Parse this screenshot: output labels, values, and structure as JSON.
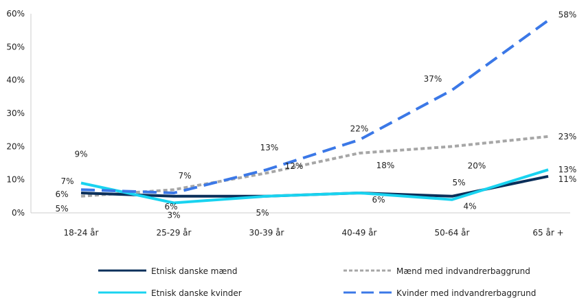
{
  "chart_data": {
    "type": "line",
    "categories": [
      "18-24 år",
      "25-29 år",
      "30-39 år",
      "40-49 år",
      "50-64 år",
      "65 år +"
    ],
    "ylim": [
      0,
      60
    ],
    "yticks": [
      "0%",
      "10%",
      "20%",
      "30%",
      "40%",
      "50%",
      "60%"
    ],
    "grid": false,
    "legend_position": "bottom",
    "series": [
      {
        "name": "Etnisk danske mænd",
        "values": [
          6,
          5,
          5,
          6,
          5,
          11
        ],
        "labels": [
          "6%",
          "",
          "5%",
          "",
          "5%",
          "11%"
        ],
        "color": "#0a2f5a",
        "style": "solid"
      },
      {
        "name": "Mænd med indvandrerbaggrund",
        "values": [
          5,
          7,
          12,
          18,
          20,
          23
        ],
        "labels": [
          "5%",
          "7%",
          "12%",
          "18%",
          "20%",
          "23%"
        ],
        "color": "#a6a6a6",
        "style": "dotted"
      },
      {
        "name": "Etnisk danske kvinder",
        "values": [
          9,
          3,
          5,
          6,
          4,
          13
        ],
        "labels": [
          "9%",
          "3%",
          "",
          "6%",
          "4%",
          "13%"
        ],
        "color": "#19d3f0",
        "style": "solid"
      },
      {
        "name": "Kvinder med indvandrerbaggrund",
        "values": [
          7,
          6,
          13,
          22,
          37,
          58
        ],
        "labels": [
          "7%",
          "6%",
          "13%",
          "22%",
          "37%",
          "58%"
        ],
        "color": "#3b78e7",
        "style": "dashed"
      }
    ]
  }
}
